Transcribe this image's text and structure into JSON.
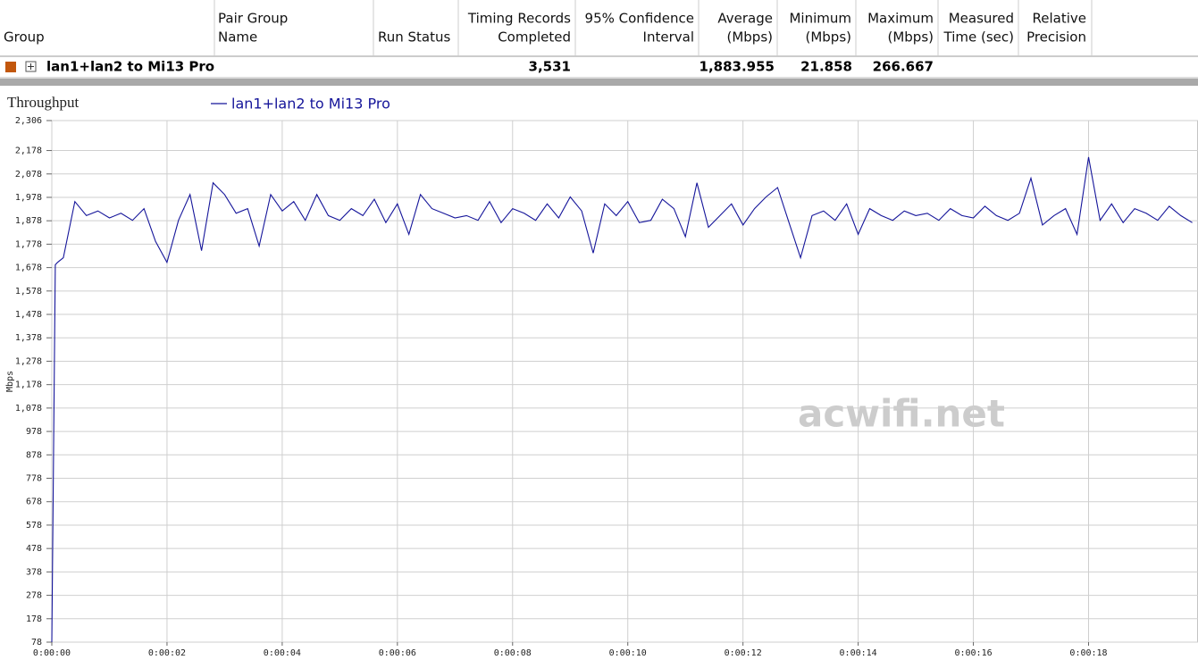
{
  "table": {
    "columns": [
      [
        "Group"
      ],
      [
        "Pair Group",
        "Name"
      ],
      [
        "Run Status"
      ],
      [
        "Timing Records",
        "Completed"
      ],
      [
        "95% Confidence",
        "Interval"
      ],
      [
        "Average",
        "(Mbps)"
      ],
      [
        "Minimum",
        "(Mbps)"
      ],
      [
        "Maximum",
        "(Mbps)"
      ],
      [
        "Measured",
        "Time (sec)"
      ],
      [
        "Relative",
        "Precision"
      ]
    ],
    "row": {
      "group": "lan1+lan2 to Mi13 Pro",
      "timing_records": "3,531",
      "average": "1,883.955",
      "minimum": "21.858",
      "maximum": "266.667"
    }
  },
  "watermark": "acwifi.net",
  "chart_data": {
    "type": "line",
    "title": "Throughput",
    "y_label": "Mbps",
    "x": [
      0,
      0.06,
      0.1,
      0.2,
      0.4,
      0.6,
      0.8,
      1.0,
      1.2,
      1.4,
      1.6,
      1.8,
      2.0,
      2.2,
      2.4,
      2.6,
      2.8,
      3.0,
      3.2,
      3.4,
      3.6,
      3.8,
      4.0,
      4.2,
      4.4,
      4.6,
      4.8,
      5.0,
      5.2,
      5.4,
      5.6,
      5.8,
      6.0,
      6.2,
      6.4,
      6.6,
      6.8,
      7.0,
      7.2,
      7.4,
      7.6,
      7.8,
      8.0,
      8.2,
      8.4,
      8.6,
      8.8,
      9.0,
      9.2,
      9.4,
      9.6,
      9.8,
      10.0,
      10.2,
      10.4,
      10.6,
      10.8,
      11.0,
      11.2,
      11.4,
      11.6,
      11.8,
      12.0,
      12.2,
      12.4,
      12.6,
      12.8,
      13.0,
      13.2,
      13.4,
      13.6,
      13.8,
      14.0,
      14.2,
      14.4,
      14.6,
      14.8,
      15.0,
      15.2,
      15.4,
      15.6,
      15.8,
      16.0,
      16.2,
      16.4,
      16.6,
      16.8,
      17.0,
      17.2,
      17.4,
      17.6,
      17.8,
      18.0,
      18.2,
      18.4,
      18.6,
      18.8,
      19.0,
      19.2,
      19.4,
      19.6,
      19.8
    ],
    "series": [
      {
        "name": "lan1+lan2 to Mi13 Pro",
        "color": "#15159a",
        "values": [
          78,
          1690,
          1700,
          1720,
          1960,
          1900,
          1920,
          1890,
          1910,
          1880,
          1930,
          1790,
          1700,
          1880,
          1990,
          1750,
          2040,
          1990,
          1910,
          1930,
          1770,
          1990,
          1920,
          1960,
          1880,
          1990,
          1900,
          1880,
          1930,
          1900,
          1970,
          1870,
          1950,
          1820,
          1990,
          1930,
          1910,
          1890,
          1900,
          1880,
          1960,
          1870,
          1930,
          1910,
          1880,
          1950,
          1890,
          1980,
          1920,
          1740,
          1950,
          1900,
          1960,
          1870,
          1880,
          1970,
          1930,
          1810,
          2040,
          1850,
          1900,
          1950,
          1860,
          1930,
          1980,
          2020,
          1870,
          1720,
          1900,
          1920,
          1880,
          1950,
          1820,
          1930,
          1900,
          1880,
          1920,
          1900,
          1910,
          1880,
          1930,
          1900,
          1890,
          1940,
          1900,
          1880,
          1910,
          2060,
          1860,
          1900,
          1930,
          1820,
          2150,
          1880,
          1950,
          1870,
          1930,
          1910,
          1880,
          1940,
          1900,
          1870
        ]
      }
    ],
    "xlim": [
      0,
      19.9
    ],
    "ylim": [
      78,
      2306
    ],
    "xticks": [
      {
        "value": 0,
        "label": "0:00:00"
      },
      {
        "value": 2,
        "label": "0:00:02"
      },
      {
        "value": 4,
        "label": "0:00:04"
      },
      {
        "value": 6,
        "label": "0:00:06"
      },
      {
        "value": 8,
        "label": "0:00:08"
      },
      {
        "value": 10,
        "label": "0:00:10"
      },
      {
        "value": 12,
        "label": "0:00:12"
      },
      {
        "value": 14,
        "label": "0:00:14"
      },
      {
        "value": 16,
        "label": "0:00:16"
      },
      {
        "value": 18,
        "label": "0:00:18"
      }
    ],
    "yticks": [
      78,
      178,
      278,
      378,
      478,
      578,
      678,
      778,
      878,
      978,
      {
        "value": 1078,
        "label": "1,078"
      },
      {
        "value": 1178,
        "label": "1,178"
      },
      {
        "value": 1278,
        "label": "1,278"
      },
      {
        "value": 1378,
        "label": "1,378"
      },
      {
        "value": 1478,
        "label": "1,478"
      },
      {
        "value": 1578,
        "label": "1,578"
      },
      {
        "value": 1678,
        "label": "1,678"
      },
      {
        "value": 1778,
        "label": "1,778"
      },
      {
        "value": 1878,
        "label": "1,878"
      },
      {
        "value": 1978,
        "label": "1,978"
      },
      {
        "value": 2078,
        "label": "2,078"
      },
      {
        "value": 2178,
        "label": "2,178"
      },
      {
        "value": 2306,
        "label": "2,306"
      }
    ],
    "grid": true
  }
}
